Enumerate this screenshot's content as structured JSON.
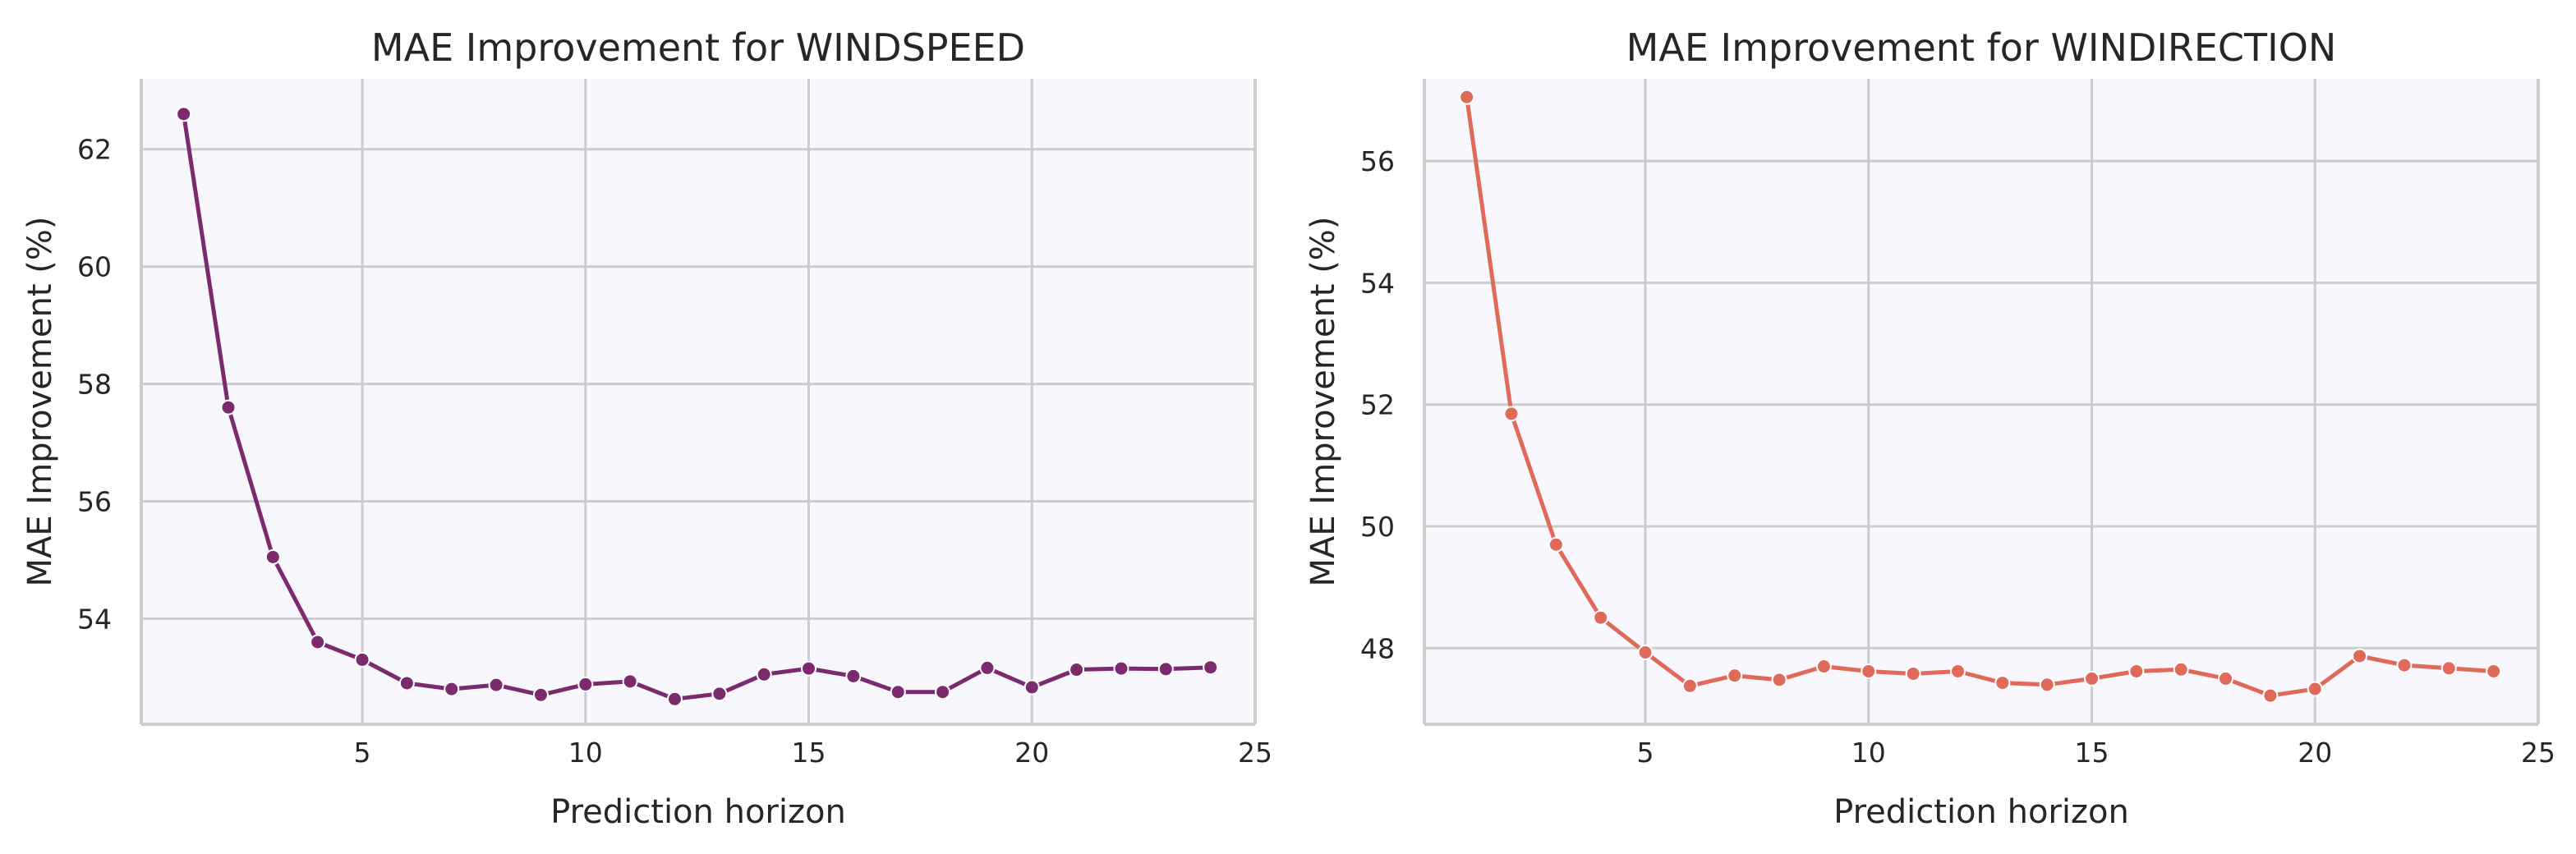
{
  "chart_data": [
    {
      "type": "line",
      "title": "MAE Improvement for WINDSPEED",
      "xlabel": "Prediction horizon",
      "ylabel": "MAE Improvement (%)",
      "xlim": [
        0.05,
        25.0
      ],
      "ylim": [
        52.2,
        63.2
      ],
      "xticks": [
        5,
        10,
        15,
        20,
        25
      ],
      "yticks": [
        54,
        56,
        58,
        60,
        62
      ],
      "grid": true,
      "color": "#7b2a6e",
      "series": [
        {
          "x": [
            1,
            2,
            3,
            4,
            5,
            6,
            7,
            8,
            9,
            10,
            11,
            12,
            13,
            14,
            15,
            16,
            17,
            18,
            19,
            20,
            21,
            22,
            23,
            24
          ],
          "values": [
            62.6,
            57.6,
            55.05,
            53.6,
            53.3,
            52.9,
            52.8,
            52.87,
            52.7,
            52.88,
            52.93,
            52.63,
            52.72,
            53.05,
            53.15,
            53.02,
            52.75,
            52.75,
            53.16,
            52.83,
            53.13,
            53.15,
            53.14,
            53.17
          ]
        }
      ]
    },
    {
      "type": "line",
      "title": "MAE Improvement for WINDIRECTION",
      "xlabel": "Prediction horizon",
      "ylabel": "MAE Improvement (%)",
      "xlim": [
        0.05,
        25.0
      ],
      "ylim": [
        46.75,
        57.35
      ],
      "xticks": [
        5,
        10,
        15,
        20,
        25
      ],
      "yticks": [
        48,
        50,
        52,
        54,
        56
      ],
      "grid": true,
      "color": "#e06a59",
      "series": [
        {
          "x": [
            1,
            2,
            3,
            4,
            5,
            6,
            7,
            8,
            9,
            10,
            11,
            12,
            13,
            14,
            15,
            16,
            17,
            18,
            19,
            20,
            21,
            22,
            23,
            24
          ],
          "values": [
            57.05,
            51.85,
            49.7,
            48.5,
            47.93,
            47.38,
            47.55,
            47.48,
            47.7,
            47.62,
            47.58,
            47.62,
            47.43,
            47.4,
            47.5,
            47.62,
            47.65,
            47.5,
            47.22,
            47.33,
            47.87,
            47.72,
            47.67,
            47.62
          ]
        }
      ]
    }
  ]
}
